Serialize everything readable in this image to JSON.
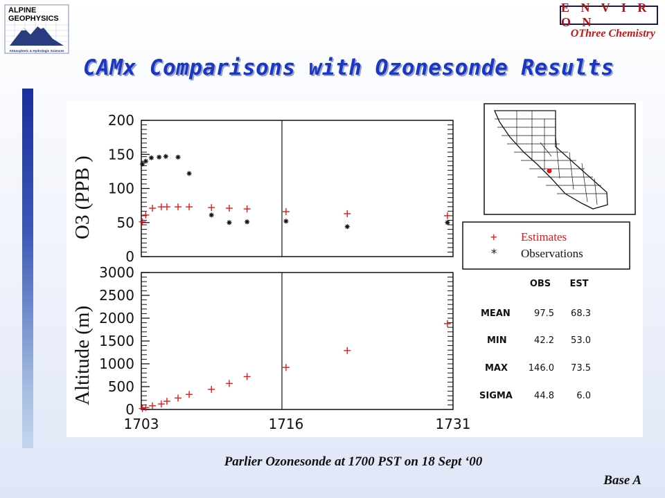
{
  "header": {
    "logo_line1": "ALPINE",
    "logo_line2": "GEOPHYSICS",
    "logo_sub": "Atmospheric & Hydrologic Sciences",
    "environ": "E N V I R O N",
    "othree": "OThree Chemistry"
  },
  "title": "CAMx Comparisons with Ozonesonde Results",
  "caption": "Parlier Ozonesonde at 1700 PST on 18 Sept ‘00",
  "footer": "Base A",
  "legend": {
    "estimates_symbol": "+",
    "estimates_label": "Estimates",
    "observations_symbol": "*",
    "observations_label": "Observations"
  },
  "stats": {
    "headers": [
      "OBS",
      "EST"
    ],
    "rows": [
      {
        "label": "MEAN",
        "obs": "97.5",
        "est": "68.3"
      },
      {
        "label": "MIN",
        "obs": "42.2",
        "est": "53.0"
      },
      {
        "label": "MAX",
        "obs": "146.0",
        "est": "73.5"
      },
      {
        "label": "SIGMA",
        "obs": "44.8",
        "est": "6.0"
      }
    ]
  },
  "colors": {
    "estimates": "#e01818",
    "observations": "#111111",
    "title": "#1936c4"
  },
  "chart_data": [
    {
      "type": "scatter",
      "ylabel": "O3   (PPB )",
      "ylim": [
        0,
        200
      ],
      "yticks": [
        0,
        50,
        100,
        150,
        200
      ],
      "xlim": [
        1703,
        1731
      ],
      "xtick_positions": [
        1703,
        1716,
        1731
      ],
      "series": [
        {
          "name": "Estimates",
          "marker": "+",
          "color": "#e01818",
          "x": [
            1703.1,
            1703.4,
            1704.0,
            1704.8,
            1705.3,
            1706.3,
            1707.3,
            1709.3,
            1710.9,
            1712.5,
            1716.0,
            1721.5,
            1730.5
          ],
          "y": [
            51,
            61,
            71,
            73,
            73,
            73,
            73,
            72,
            71,
            70,
            66,
            63,
            60
          ]
        },
        {
          "name": "Observations",
          "marker": "*",
          "color": "#111111",
          "x": [
            1703.1,
            1703.4,
            1703.9,
            1704.6,
            1705.2,
            1706.3,
            1707.3,
            1709.3,
            1710.9,
            1712.5,
            1716.0,
            1721.5,
            1730.5
          ],
          "y": [
            136,
            140,
            145,
            146,
            147,
            146,
            122,
            61,
            50,
            51,
            52,
            44,
            50
          ]
        }
      ]
    },
    {
      "type": "scatter",
      "ylabel": "Altitude (m)",
      "ylim": [
        0,
        3000
      ],
      "yticks": [
        0,
        500,
        1000,
        1500,
        2000,
        2500,
        3000
      ],
      "xlim": [
        1703,
        1731
      ],
      "xticks": [
        1703,
        1716,
        1731
      ],
      "series": [
        {
          "name": "Estimates",
          "marker": "+",
          "color": "#e01818",
          "x": [
            1703.1,
            1703.4,
            1704.0,
            1704.8,
            1705.3,
            1706.3,
            1707.3,
            1709.3,
            1710.9,
            1712.5,
            1716.0,
            1721.5,
            1730.5
          ],
          "y": [
            20,
            40,
            80,
            120,
            180,
            250,
            330,
            440,
            570,
            720,
            920,
            1290,
            1880
          ]
        }
      ]
    }
  ]
}
